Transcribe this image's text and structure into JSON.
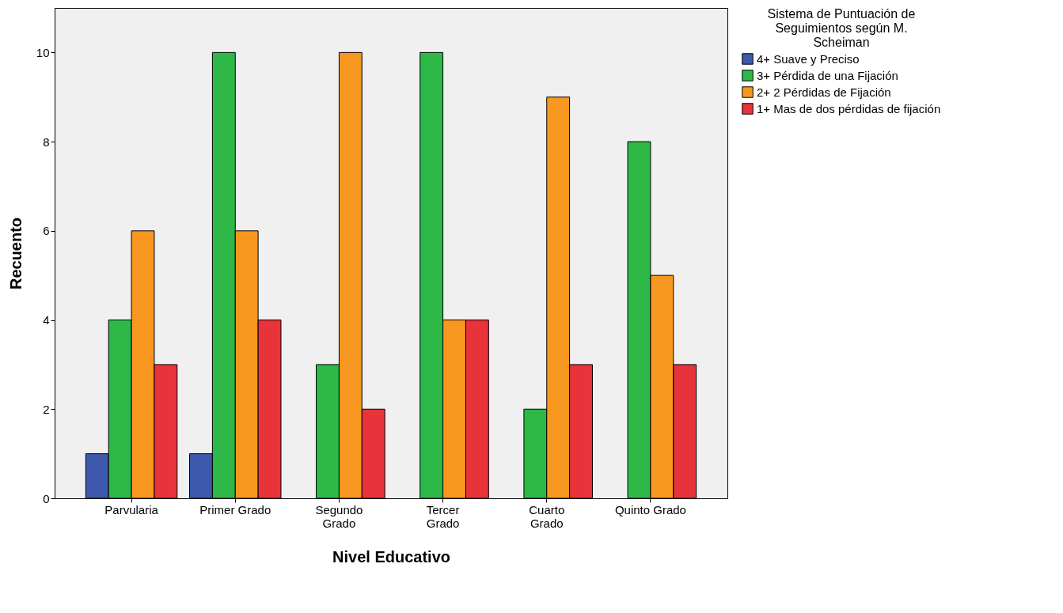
{
  "chart_data": {
    "type": "bar",
    "xlabel": "Nivel Educativo",
    "ylabel": "Recuento",
    "legend_title": "Sistema de Puntuación de Seguimientos según M. Scheiman",
    "categories": [
      "Parvularia",
      "Primer Grado",
      "Segundo\nGrado",
      "Tercer\nGrado",
      "Cuarto\nGrado",
      "Quinto Grado"
    ],
    "series": [
      {
        "name": "4+ Suave y Preciso",
        "color": "#3e58ac",
        "values": [
          1,
          1,
          null,
          null,
          null,
          null
        ]
      },
      {
        "name": "3+ Pérdida de una Fijación",
        "color": "#2eb848",
        "values": [
          4,
          10,
          3,
          10,
          2,
          8
        ]
      },
      {
        "name": "2+ 2 Pérdidas de Fijación",
        "color": "#f8971f",
        "values": [
          6,
          6,
          10,
          4,
          9,
          5
        ]
      },
      {
        "name": "1+ Mas de dos pérdidas de fijación",
        "color": "#e8333a",
        "values": [
          3,
          4,
          2,
          4,
          3,
          3
        ]
      }
    ],
    "ylim": [
      0,
      11
    ],
    "yticks": [
      0,
      2,
      4,
      6,
      8,
      10
    ],
    "grid": false,
    "legend": "top right"
  }
}
